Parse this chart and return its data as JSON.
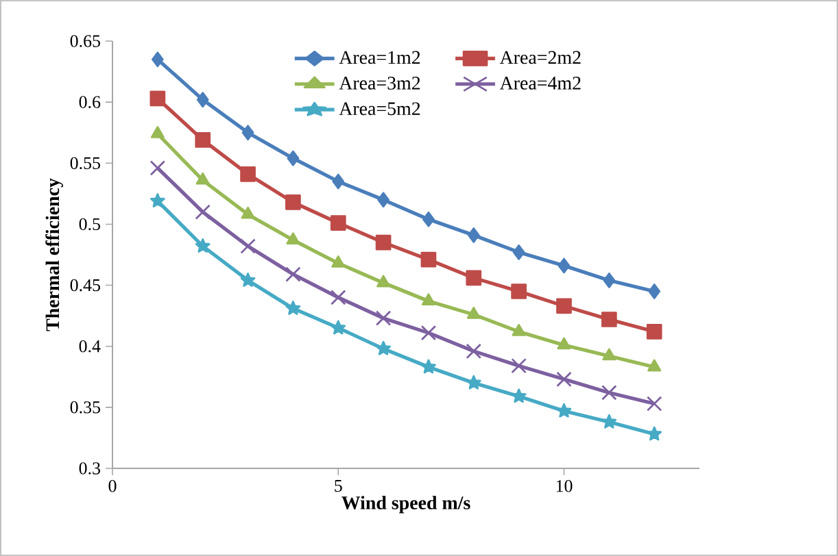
{
  "chart_data": {
    "type": "line",
    "xlabel": "Wind speed m/s",
    "ylabel": "Thermal efficiency",
    "x": [
      1,
      2,
      3,
      4,
      5,
      6,
      7,
      8,
      9,
      10,
      11,
      12
    ],
    "xlim": [
      0,
      13
    ],
    "xticks": [
      0,
      5,
      10
    ],
    "ylim": [
      0.3,
      0.65
    ],
    "yticks": [
      0.3,
      0.35,
      0.4,
      0.45,
      0.5,
      0.55,
      0.6,
      0.65
    ],
    "grid": false,
    "legend": "top right",
    "line_style": "solid",
    "series": [
      {
        "name": "Area=1m2",
        "color": "#4a7ebb",
        "marker": "diamond",
        "values": [
          0.635,
          0.602,
          0.575,
          0.554,
          0.535,
          0.52,
          0.504,
          0.491,
          0.477,
          0.466,
          0.454,
          0.445
        ]
      },
      {
        "name": "Area=2m2",
        "color": "#be4b48",
        "marker": "square",
        "values": [
          0.603,
          0.569,
          0.541,
          0.518,
          0.501,
          0.485,
          0.471,
          0.456,
          0.445,
          0.433,
          0.422,
          0.412
        ]
      },
      {
        "name": "Area=3m2",
        "color": "#98b954",
        "marker": "triangle",
        "values": [
          0.574,
          0.536,
          0.508,
          0.487,
          0.468,
          0.452,
          0.437,
          0.426,
          0.412,
          0.401,
          0.392,
          0.383
        ]
      },
      {
        "name": "Area=4m2",
        "color": "#7d60a0",
        "marker": "cross",
        "values": [
          0.546,
          0.51,
          0.482,
          0.459,
          0.44,
          0.423,
          0.411,
          0.396,
          0.384,
          0.373,
          0.362,
          0.353
        ]
      },
      {
        "name": "Area=5m2",
        "color": "#46aac5",
        "marker": "star",
        "values": [
          0.519,
          0.482,
          0.454,
          0.431,
          0.415,
          0.398,
          0.383,
          0.37,
          0.359,
          0.347,
          0.338,
          0.328
        ]
      }
    ]
  }
}
